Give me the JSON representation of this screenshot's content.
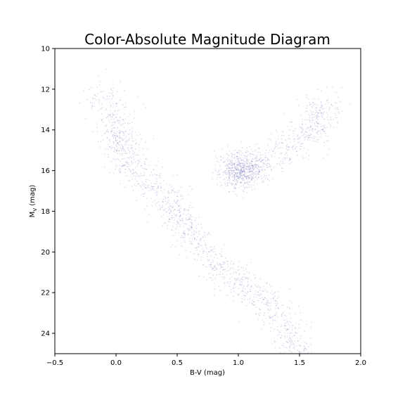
{
  "chart_data": {
    "type": "scatter",
    "title": "Color-Absolute Magnitude Diagram",
    "xlabel": "B-V (mag)",
    "ylabel_main": "M",
    "ylabel_sub": "V",
    "ylabel_unit": " (mag)",
    "xlim": [
      -0.5,
      2.0
    ],
    "ylim": [
      25,
      10
    ],
    "y_inverted": true,
    "grid": false,
    "x_ticks": [
      -0.5,
      0.0,
      0.5,
      1.0,
      1.5,
      2.0
    ],
    "x_tick_labels": [
      "−0.5",
      "0.0",
      "0.5",
      "1.0",
      "1.5",
      "2.0"
    ],
    "y_ticks": [
      10,
      12,
      14,
      16,
      18,
      20,
      22,
      24
    ],
    "y_tick_labels": [
      "10",
      "12",
      "14",
      "16",
      "18",
      "20",
      "22",
      "24"
    ],
    "point_color": "#000080",
    "point_alpha": 0.15,
    "series": [
      {
        "region": "main-sequence",
        "points": [
          [
            0.0,
            14.5
          ],
          [
            0.05,
            15.0
          ],
          [
            0.1,
            15.5
          ],
          [
            0.15,
            15.9
          ],
          [
            0.25,
            16.5
          ],
          [
            0.35,
            17.1
          ],
          [
            0.45,
            17.7
          ],
          [
            0.5,
            18.2
          ],
          [
            0.55,
            18.6
          ],
          [
            0.6,
            19.2
          ],
          [
            0.7,
            19.8
          ],
          [
            0.8,
            20.5
          ],
          [
            0.9,
            21.0
          ],
          [
            1.0,
            21.4
          ],
          [
            1.1,
            21.9
          ],
          [
            1.2,
            22.4
          ],
          [
            1.3,
            22.9
          ],
          [
            1.4,
            23.6
          ],
          [
            1.45,
            24.3
          ],
          [
            1.5,
            25.0
          ]
        ]
      },
      {
        "region": "red-clump",
        "points": [
          [
            1.0,
            16.0
          ],
          [
            1.05,
            15.8
          ],
          [
            1.1,
            16.1
          ],
          [
            0.95,
            16.2
          ]
        ]
      },
      {
        "region": "giant-branch",
        "points": [
          [
            1.0,
            15.9
          ],
          [
            1.2,
            15.4
          ],
          [
            1.4,
            14.9
          ],
          [
            1.55,
            14.3
          ],
          [
            1.65,
            13.6
          ],
          [
            1.7,
            13.0
          ]
        ]
      },
      {
        "region": "upper-main-sequence",
        "points": [
          [
            -0.1,
            12.5
          ],
          [
            0.0,
            13.5
          ],
          [
            0.05,
            14.2
          ]
        ]
      }
    ]
  }
}
